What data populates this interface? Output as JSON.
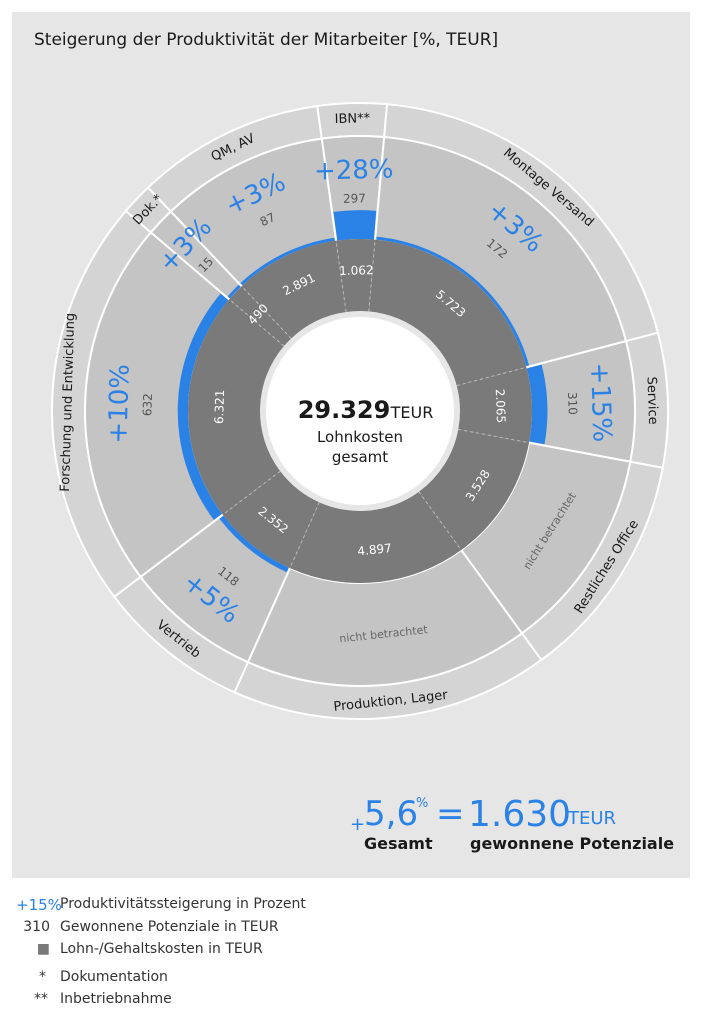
{
  "title": {
    "text": "Steigerung der Produktivität der Mitarbeiter",
    "unit": "[%, TEUR]"
  },
  "center": {
    "value": "29.329",
    "unit": "TEUR",
    "line1": "Lohnkosten",
    "line2": "gesamt"
  },
  "colors": {
    "accent": "#2b82e6",
    "outer_ring": "#cfcfcf",
    "middle_ring": "#bfbfbf",
    "inner_ring": "#7a7a7a",
    "panel": "#e6e6e6"
  },
  "chart_data": {
    "type": "pie",
    "title": "Steigerung der Produktivität der Mitarbeiter [%, TEUR]",
    "total_label": "29.329 TEUR Lohnkosten gesamt",
    "segments": [
      {
        "name": "IBN**",
        "lohnkosten_teur": "1.062",
        "pct": "28",
        "potenzial_teur": "297"
      },
      {
        "name": "Montage Versand",
        "lohnkosten_teur": "5.723",
        "pct": "3",
        "potenzial_teur": "172"
      },
      {
        "name": "Service",
        "lohnkosten_teur": "2.065",
        "pct": "15",
        "potenzial_teur": "310"
      },
      {
        "name": "Restliches Office",
        "lohnkosten_teur": "3.528",
        "pct": "",
        "potenzial_teur": "",
        "note": "nicht betrachtet"
      },
      {
        "name": "Produktion, Lager",
        "lohnkosten_teur": "4.897",
        "pct": "",
        "potenzial_teur": "",
        "note": "nicht betrachtet"
      },
      {
        "name": "Vertrieb",
        "lohnkosten_teur": "2.352",
        "pct": "5",
        "potenzial_teur": "118"
      },
      {
        "name": "Forschung und Entwicklung",
        "lohnkosten_teur": "6.321",
        "pct": "10",
        "potenzial_teur": "632"
      },
      {
        "name": "Dok.*",
        "lohnkosten_teur": "490",
        "pct": "3",
        "potenzial_teur": "15"
      },
      {
        "name": "QM, AV",
        "lohnkosten_teur": "2.891",
        "pct": "3",
        "potenzial_teur": "87"
      }
    ]
  },
  "summary": {
    "plus": "+",
    "pct_value": "5,6",
    "pct_sign": "%",
    "equals": "=",
    "teur_value": "1.630",
    "teur_unit": "TEUR",
    "label_left": "Gesamt",
    "label_right": "gewonnene Potenziale"
  },
  "legend": [
    {
      "key": "+15%",
      "text": "Produktivitätssteigerung in Prozent"
    },
    {
      "key": "310",
      "text": "Gewonnene Potenziale in TEUR"
    },
    {
      "key": "■",
      "text": "Lohn-/Gehaltskosten in TEUR"
    },
    {
      "key": "*",
      "text": "Dokumentation"
    },
    {
      "key": "**",
      "text": "Inbetriebnahme"
    }
  ]
}
